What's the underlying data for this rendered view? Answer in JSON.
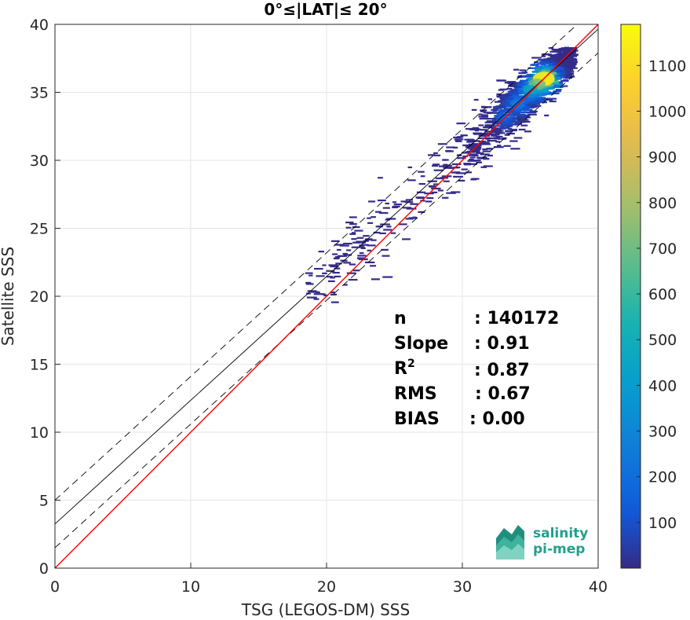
{
  "chart_data": {
    "type": "heatmap",
    "title": "0°≤|LAT|≤ 20°",
    "xlabel": "TSG (LEGOS-DM) SSS",
    "ylabel": "Satellite SSS",
    "xlim": [
      0,
      40
    ],
    "ylim": [
      0,
      40
    ],
    "xticks": [
      "0",
      "10",
      "20",
      "30",
      "40"
    ],
    "yticks": [
      "0",
      "5",
      "10",
      "15",
      "20",
      "25",
      "30",
      "35",
      "40"
    ],
    "grid": true,
    "colorbar": {
      "range": [
        0,
        1190
      ],
      "ticks": [
        "100",
        "200",
        "300",
        "400",
        "500",
        "600",
        "700",
        "800",
        "900",
        "1000",
        "1100"
      ],
      "colormap": "parula"
    },
    "lines": {
      "identity": {
        "slope": 1.0,
        "intercept": 0.0,
        "color": "#ff0000"
      },
      "fit": {
        "slope": 0.91,
        "intercept": 3.25,
        "color": "#000000"
      },
      "fit_upper": {
        "slope": 0.91,
        "intercept": 5.0,
        "color": "#000000",
        "dashed": true
      },
      "fit_lower": {
        "slope": 0.91,
        "intercept": 1.5,
        "color": "#000000",
        "dashed": true
      }
    },
    "density_core": [
      {
        "x": 36.0,
        "y": 36.0,
        "count": 1150
      },
      {
        "x": 35.5,
        "y": 35.6,
        "count": 700
      },
      {
        "x": 35.0,
        "y": 35.2,
        "count": 450
      },
      {
        "x": 34.0,
        "y": 34.2,
        "count": 250
      },
      {
        "x": 33.0,
        "y": 33.2,
        "count": 150
      }
    ],
    "stats": [
      {
        "label": "n",
        "value": ": 140172"
      },
      {
        "label": "Slope",
        "value": ": 0.91"
      },
      {
        "label": "R",
        "sup": "2",
        "value": ": 0.87"
      },
      {
        "label": "RMS",
        "value": ": 0.67"
      },
      {
        "label": "BIAS",
        "value": ": 0.00"
      }
    ]
  },
  "logo": {
    "line1": "salinity",
    "line2": "pi-mep"
  }
}
